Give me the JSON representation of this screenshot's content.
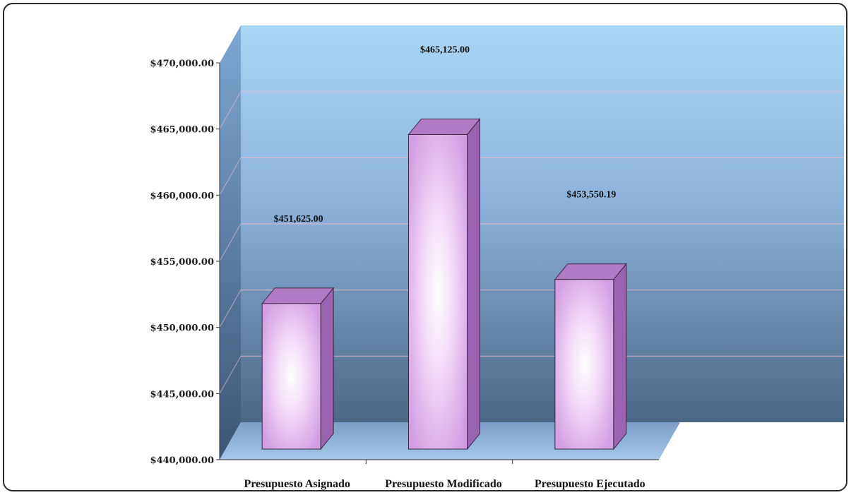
{
  "chart_data": {
    "type": "bar",
    "categories": [
      "Presupuesto Asignado",
      "Presupuesto Modificado",
      "Presupuesto Ejecutado"
    ],
    "values": [
      451625.0,
      465125.0,
      453550.19
    ],
    "data_labels": [
      "$451,625.00",
      "$465,125.00",
      "$453,550.19"
    ],
    "y_ticks": [
      "$440,000.00",
      "$445,000.00",
      "$450,000.00",
      "$455,000.00",
      "$460,000.00",
      "$465,000.00",
      "$470,000.00"
    ],
    "ylim": [
      440000,
      470000
    ],
    "title": "",
    "xlabel": "",
    "ylabel": "",
    "three_d": true,
    "grid": true,
    "legend": "none",
    "colors": {
      "bar_face_center": "#ffffff",
      "bar_face_edge": "#d9a3e8",
      "bar_top": "#b07ac4",
      "bar_side": "#9a64b0",
      "wall_top": "#a9d3f3",
      "wall_bottom": "#4a6384",
      "floor": "#8fb3de",
      "side_wall": "#5f82ad",
      "gridline": "#e9b7c8"
    }
  }
}
